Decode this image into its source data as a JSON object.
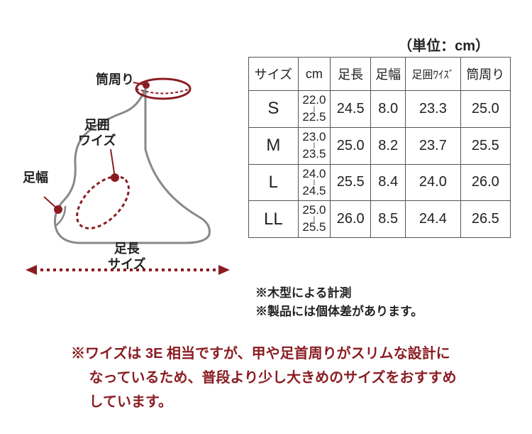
{
  "unit": "（単位：cm）",
  "diagram": {
    "label_tube": "筒周り",
    "label_wise": "足囲\nワイズ",
    "label_width": "足幅",
    "label_length": "足長\nサイズ",
    "outline_color": "#888888",
    "accent_color": "#8a1d22",
    "dot_color": "#8a1d22"
  },
  "table": {
    "headers": [
      "サイズ",
      "cm",
      "足長",
      "足幅",
      "足囲ﾜｲｽﾞ",
      "筒周り"
    ],
    "rows": [
      {
        "size": "S",
        "cm": [
          "22.0",
          "22.5"
        ],
        "values": [
          "24.5",
          "8.0",
          "23.3",
          "25.0"
        ]
      },
      {
        "size": "M",
        "cm": [
          "23.0",
          "23.5"
        ],
        "values": [
          "25.0",
          "8.2",
          "23.7",
          "25.5"
        ]
      },
      {
        "size": "L",
        "cm": [
          "24.0",
          "24.5"
        ],
        "values": [
          "25.5",
          "8.4",
          "24.0",
          "26.0"
        ]
      },
      {
        "size": "LL",
        "cm": [
          "25.0",
          "25.5"
        ],
        "values": [
          "26.0",
          "8.5",
          "24.4",
          "26.5"
        ]
      }
    ]
  },
  "notes": {
    "line1": "※木型による計測",
    "line2": "※製品には個体差があります。"
  },
  "footer": {
    "line1": "※ワイズは 3E 相当ですが、甲や足首周りがスリムな設計に",
    "line2": "　 なっているため、普段より少し大きめのサイズをおすすめ",
    "line3": "　 しています。"
  }
}
